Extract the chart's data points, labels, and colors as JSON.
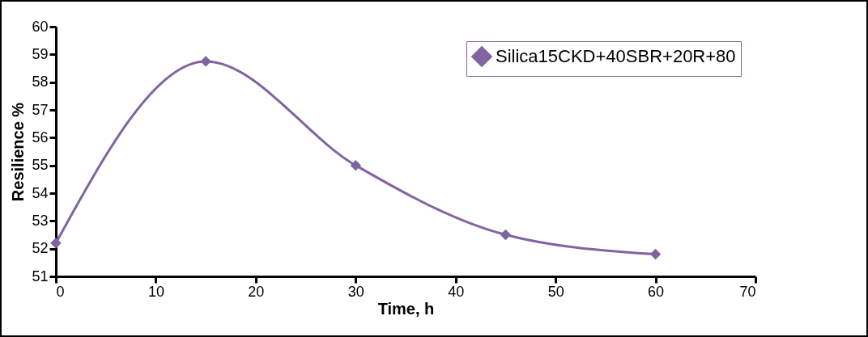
{
  "chart_data": {
    "type": "line",
    "xlabel": "Time, h",
    "ylabel": "Resilience %",
    "x": [
      0,
      15,
      30,
      45,
      60
    ],
    "series": [
      {
        "name": "Silica15CKD+40SBR+20R+80",
        "color": "#8064a2",
        "values": [
          52.2,
          58.75,
          55.0,
          52.5,
          51.8
        ]
      }
    ],
    "xlim": [
      0,
      70
    ],
    "xticks": [
      0,
      10,
      20,
      30,
      40,
      50,
      60,
      70
    ],
    "ylim": [
      51,
      60
    ],
    "yticks": [
      51,
      52,
      53,
      54,
      55,
      56,
      57,
      58,
      59,
      60
    ],
    "grid": false,
    "legend": "top right",
    "marker": "diamond",
    "line_style": "solid"
  }
}
